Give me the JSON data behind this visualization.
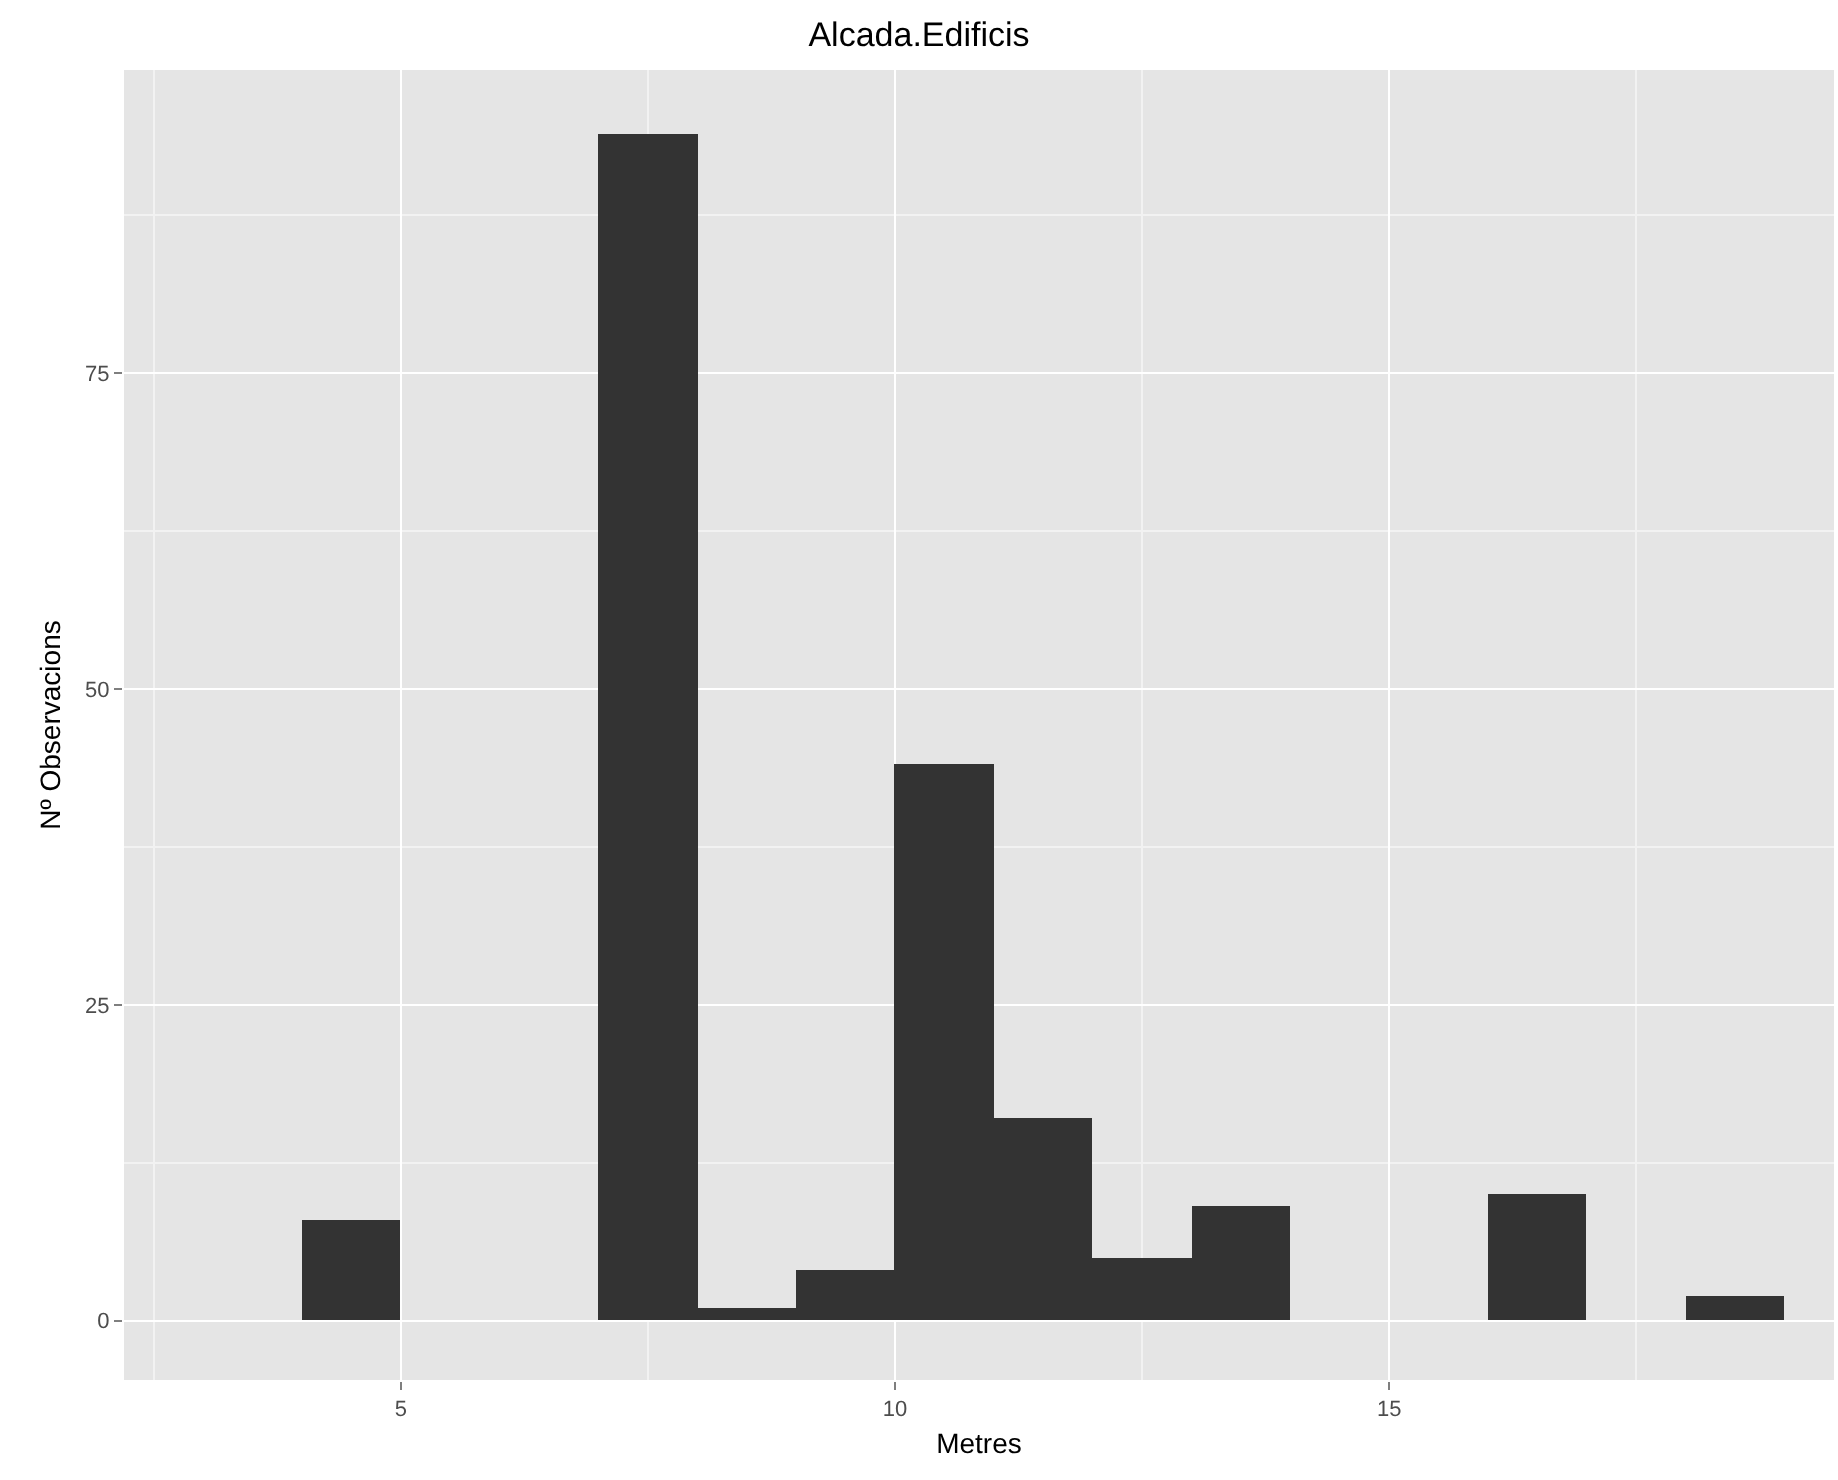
{
  "chart_data": {
    "type": "histogram",
    "title": "Alcada.Edificis",
    "xlabel": "Metres",
    "ylabel": "Nº Observacions",
    "bins": [
      4,
      5,
      6,
      7,
      8,
      9,
      10,
      11,
      12,
      13,
      14,
      15,
      16,
      17,
      18,
      19
    ],
    "values": [
      8,
      0,
      0,
      94,
      1,
      4,
      44,
      16,
      5,
      9,
      0,
      0,
      10,
      0,
      2
    ],
    "color": "#333333",
    "xlim": [
      2.2,
      19.5
    ],
    "xticks": [
      5,
      10,
      15
    ],
    "ylim": [
      -4.7,
      99
    ],
    "yticks": [
      0,
      25,
      50,
      75
    ],
    "grid": true,
    "legend": false
  }
}
